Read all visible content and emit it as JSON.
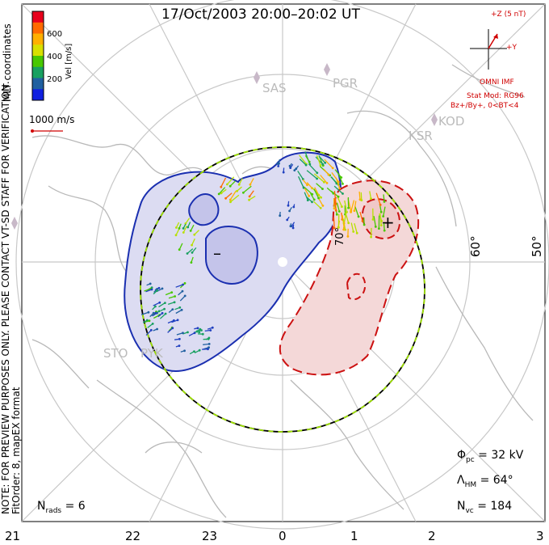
{
  "title": "17/Oct/2003 20:00–20:02 UT",
  "colorbar": {
    "title": "Vel [m/s]",
    "ticks": [
      "600",
      "400",
      "200"
    ],
    "colors": [
      "#e8001c",
      "#ff6a00",
      "#ffb000",
      "#d8e000",
      "#48c800",
      "#18a060",
      "#2060a0",
      "#1020e0"
    ]
  },
  "side_text": {
    "coords": "MLT coordinates",
    "note": "NOTE: FOR PREVIEW PURPOSES ONLY. PLEASE CONTACT VT-SD STAFF FOR VERIFICATION.",
    "fit": "FitOrder: 8, mapEX format"
  },
  "scale": {
    "label": "1000 m/s"
  },
  "imf": {
    "z_label": "+Z (5 nT)",
    "y_label": "+Y",
    "source": "OMNI IMF",
    "model": "Stat Mod: RG96",
    "condition": "Bz+/By+, 0<BT<4",
    "angle_deg": 30
  },
  "stations": [
    "SAS",
    "PGR",
    "KOD",
    "KSR",
    "STO",
    "PYK"
  ],
  "latitude_labels": [
    "60°",
    "50°",
    "70°"
  ],
  "mlt_labels": [
    "21",
    "22",
    "23",
    "0",
    "1",
    "2",
    "3"
  ],
  "stats": {
    "phi_pc": {
      "symbol": "Φ",
      "sub": "pc",
      "value": "= 32 kV"
    },
    "lambda_hm": {
      "symbol": "Λ",
      "sub": "HM",
      "value": "= 64°"
    },
    "n_vc": {
      "symbol": "N",
      "sub": "vc",
      "value": "= 184"
    },
    "n_rads": {
      "symbol": "N",
      "sub": "rads",
      "value": "= 6"
    }
  },
  "chart_data": {
    "type": "polar-convection-map",
    "cross_polar_cap_potential_kV": 32,
    "heppner_maynard_boundary_deg": 64,
    "num_vectors": 184,
    "num_radars": 6,
    "cells": [
      {
        "sign": "-",
        "polarity": "negative",
        "color": "#1a2fb0"
      },
      {
        "sign": "+",
        "polarity": "positive",
        "color": "#cc1111"
      }
    ]
  }
}
